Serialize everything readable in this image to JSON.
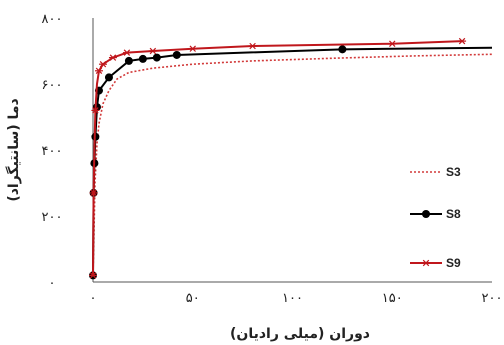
{
  "chart_data": {
    "type": "line",
    "xlabel": "دوران (میلی رادیان)",
    "ylabel": "دما (سانتیگراد)",
    "xlim": [
      0,
      200
    ],
    "ylim": [
      0,
      800
    ],
    "x_ticks": [
      0,
      50,
      100,
      150,
      200
    ],
    "x_tick_labels": [
      "۰",
      "۵۰",
      "۱۰۰",
      "۱۵۰",
      "۲۰۰"
    ],
    "y_ticks": [
      0,
      200,
      400,
      600,
      800
    ],
    "y_tick_labels": [
      "۰",
      "۲۰۰",
      "۴۰۰",
      "۶۰۰",
      "۸۰۰"
    ],
    "grid": false,
    "legend_position": "right",
    "series": [
      {
        "name": "S3",
        "color": "#d23a3a",
        "style": "dotted",
        "marker": "none",
        "x": [
          0,
          0.5,
          1,
          2,
          3,
          5,
          8,
          12,
          18,
          30,
          50,
          80,
          120,
          160,
          200
        ],
        "y": [
          20,
          150,
          300,
          420,
          480,
          540,
          580,
          615,
          635,
          648,
          660,
          670,
          678,
          685,
          690
        ]
      },
      {
        "name": "S8",
        "color": "#000000",
        "style": "solid",
        "marker": "circle",
        "x": [
          0,
          0.3,
          0.7,
          1.2,
          2,
          3,
          8,
          18,
          25,
          32,
          42,
          125,
          200
        ],
        "y": [
          20,
          270,
          360,
          440,
          530,
          580,
          620,
          670,
          676,
          680,
          688,
          705,
          710
        ]
      },
      {
        "name": "S9",
        "color": "#c0171c",
        "style": "solid",
        "marker": "star",
        "x": [
          0,
          0.3,
          0.7,
          1.2,
          2,
          3,
          5,
          10,
          17,
          30,
          50,
          80,
          150,
          185
        ],
        "y": [
          20,
          270,
          400,
          520,
          600,
          640,
          660,
          680,
          695,
          700,
          707,
          715,
          722,
          730
        ]
      }
    ]
  }
}
